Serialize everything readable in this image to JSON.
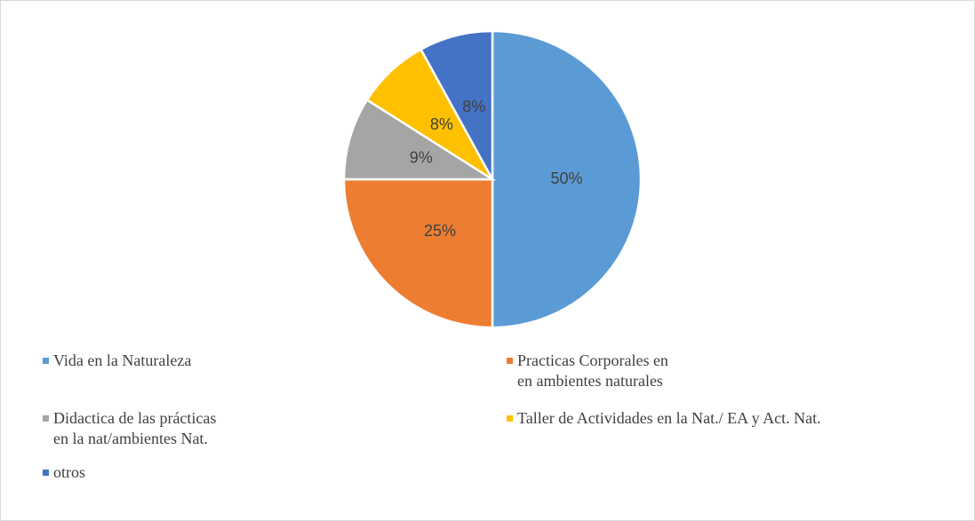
{
  "chart_data": {
    "type": "pie",
    "categories": [
      "Vida en la Naturaleza",
      "Practicas Corporales en\nen ambientes naturales",
      "Didactica de las prácticas\nen la nat/ambientes Nat.",
      "Taller de Actividades en la Nat./ EA y Act. Nat.",
      "otros"
    ],
    "values": [
      50,
      25,
      9,
      8,
      8
    ],
    "value_labels": [
      "50%",
      "25%",
      "9%",
      "8%",
      "8%"
    ],
    "colors": [
      "#5b9bd5",
      "#ed7d31",
      "#a5a5a5",
      "#ffc000",
      "#4472c4"
    ],
    "legend": "bottom"
  }
}
